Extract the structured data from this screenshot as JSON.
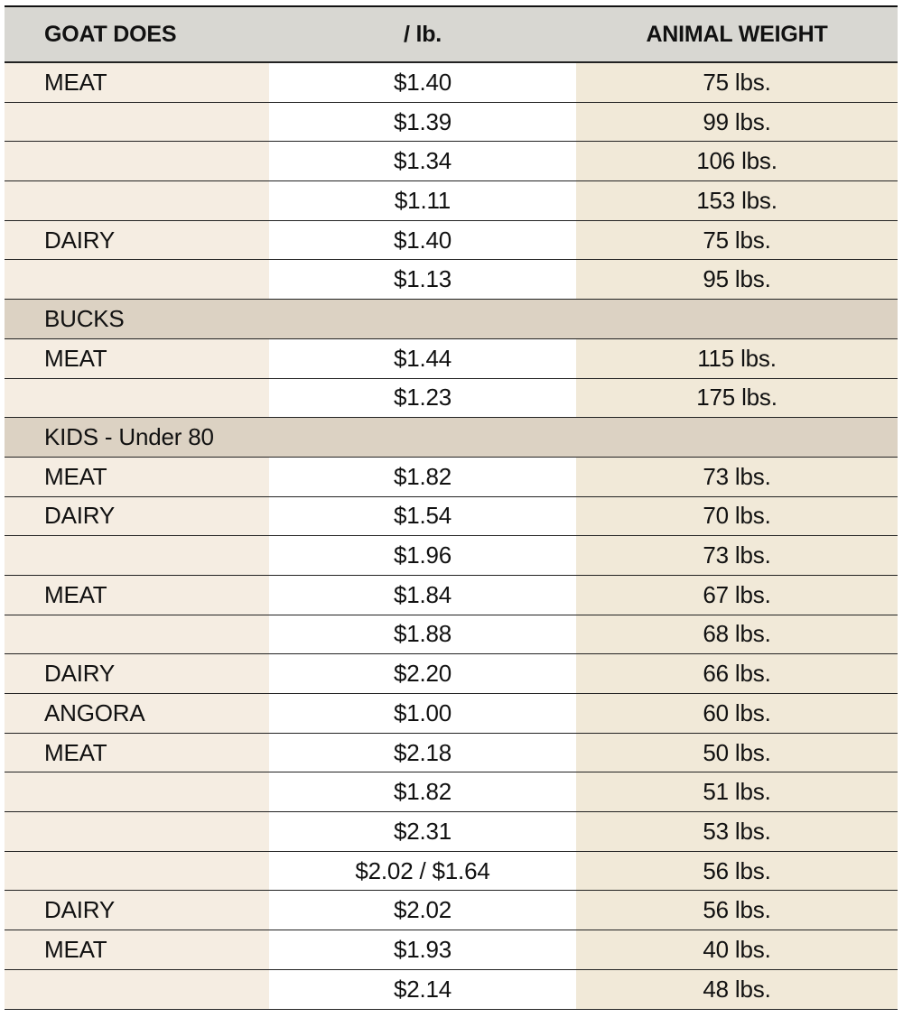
{
  "header": {
    "col1": "GOAT DOES",
    "col2": "/ lb.",
    "col3": "ANIMAL WEIGHT"
  },
  "rows": [
    {
      "type": "data",
      "label": "MEAT",
      "price": "$1.40",
      "weight": "75 lbs."
    },
    {
      "type": "data",
      "label": "",
      "price": "$1.39",
      "weight": "99 lbs."
    },
    {
      "type": "data",
      "label": "",
      "price": "$1.34",
      "weight": "106 lbs."
    },
    {
      "type": "data",
      "label": "",
      "price": "$1.11",
      "weight": "153 lbs."
    },
    {
      "type": "data",
      "label": "DAIRY",
      "price": "$1.40",
      "weight": "75 lbs."
    },
    {
      "type": "data",
      "label": "",
      "price": "$1.13",
      "weight": "95 lbs."
    },
    {
      "type": "section",
      "label": "BUCKS"
    },
    {
      "type": "data",
      "label": "MEAT",
      "price": "$1.44",
      "weight": "115 lbs."
    },
    {
      "type": "data",
      "label": "",
      "price": "$1.23",
      "weight": "175 lbs."
    },
    {
      "type": "section",
      "label": "KIDS - Under 80"
    },
    {
      "type": "data",
      "label": "MEAT",
      "price": "$1.82",
      "weight": "73 lbs."
    },
    {
      "type": "data",
      "label": "DAIRY",
      "price": "$1.54",
      "weight": "70 lbs."
    },
    {
      "type": "data",
      "label": "",
      "price": "$1.96",
      "weight": "73 lbs."
    },
    {
      "type": "data",
      "label": "MEAT",
      "price": "$1.84",
      "weight": "67 lbs."
    },
    {
      "type": "data",
      "label": "",
      "price": "$1.88",
      "weight": "68 lbs."
    },
    {
      "type": "data",
      "label": "DAIRY",
      "price": "$2.20",
      "weight": "66 lbs."
    },
    {
      "type": "data",
      "label": "ANGORA",
      "price": "$1.00",
      "weight": "60 lbs."
    },
    {
      "type": "data",
      "label": "MEAT",
      "price": "$2.18",
      "weight": "50 lbs."
    },
    {
      "type": "data",
      "label": "",
      "price": "$1.82",
      "weight": "51 lbs."
    },
    {
      "type": "data",
      "label": "",
      "price": "$2.31",
      "weight": "53 lbs."
    },
    {
      "type": "data",
      "label": "",
      "price": "$2.02 / $1.64",
      "weight": "56 lbs."
    },
    {
      "type": "data",
      "label": "DAIRY",
      "price": "$2.02",
      "weight": "56 lbs."
    },
    {
      "type": "data",
      "label": "MEAT",
      "price": "$1.93",
      "weight": "40 lbs."
    },
    {
      "type": "data",
      "label": "",
      "price": "$2.14",
      "weight": "48 lbs."
    }
  ]
}
